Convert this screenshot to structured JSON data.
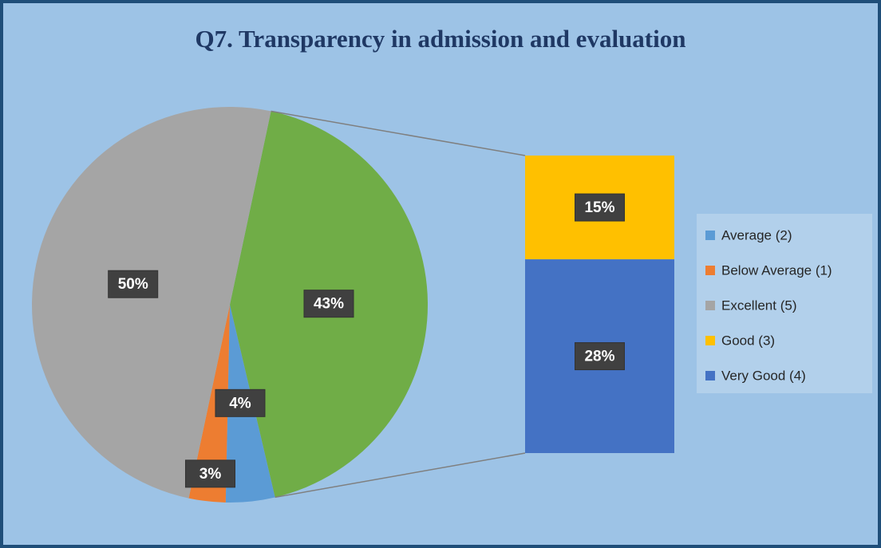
{
  "chart_data": {
    "type": "pie-of-bar",
    "title": "Q7. Transparency in admission and evaluation",
    "slices": [
      {
        "name": "Average (2)",
        "value": 4,
        "value_label": "4%",
        "color": "#5b9bd5",
        "in": "pie"
      },
      {
        "name": "Below Average (1)",
        "value": 3,
        "value_label": "3%",
        "color": "#ed7d31",
        "in": "pie"
      },
      {
        "name": "Excellent (5)",
        "value": 50,
        "value_label": "50%",
        "color": "#a5a5a5",
        "in": "pie"
      },
      {
        "name": "Good (3)",
        "value": 15,
        "value_label": "15%",
        "color": "#ffc000",
        "in": "bar"
      },
      {
        "name": "Very Good (4)",
        "value": 28,
        "value_label": "28%",
        "color": "#4472c4",
        "in": "bar"
      }
    ],
    "other": {
      "value": 43,
      "value_label": "43%",
      "color": "#70ad47"
    },
    "legend": "right"
  }
}
